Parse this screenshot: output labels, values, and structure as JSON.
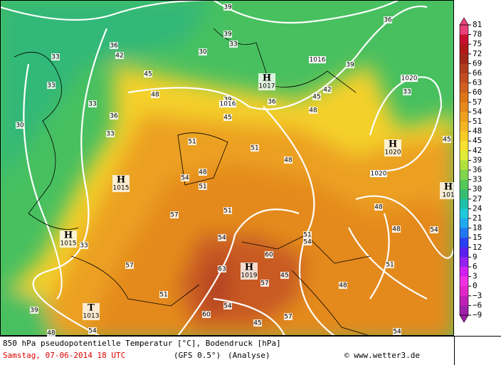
{
  "colorbar": {
    "ticks": [
      81,
      78,
      75,
      72,
      69,
      66,
      63,
      60,
      57,
      54,
      51,
      48,
      45,
      42,
      39,
      36,
      33,
      30,
      27,
      24,
      21,
      18,
      15,
      12,
      9,
      6,
      3,
      0,
      {
        "value": -3,
        "label": "−3"
      },
      {
        "value": -6,
        "label": "−6"
      },
      {
        "value": -9,
        "label": "−9"
      }
    ],
    "colors": [
      "#e8407a",
      "#c8102e",
      "#b01818",
      "#a02818",
      "#b03c20",
      "#c04e20",
      "#d06020",
      "#dc7418",
      "#e68a1c",
      "#eea020",
      "#f4b624",
      "#f8ca28",
      "#f8e030",
      "#e0ec38",
      "#b0e040",
      "#80d450",
      "#56c858",
      "#36be70",
      "#20c0a8",
      "#20c8d8",
      "#20a8f0",
      "#2078f0",
      "#2a40f0",
      "#5a20f0",
      "#9420f0",
      "#d020f0",
      "#f030e0",
      "#e028c8",
      "#c020b8",
      "#a020a8"
    ]
  },
  "contour_labels": [
    "39",
    "36",
    "39",
    "33",
    "30",
    "33",
    "36",
    "45",
    "42",
    "48",
    "33",
    "33",
    "36",
    "30",
    "33",
    "39",
    "45",
    "36",
    "48",
    "51",
    "48",
    "51",
    "54",
    "48",
    "51",
    "57",
    "51",
    "54",
    "51",
    "54",
    "57",
    "60",
    "57",
    "45",
    "51",
    "54",
    "60",
    "57",
    "45",
    "54",
    "48",
    "39",
    "33",
    "42",
    "45",
    "39",
    "33",
    "45",
    "48",
    "54",
    "51",
    "48",
    "54",
    "48",
    "63"
  ],
  "isobar_labels": [
    "1016",
    "1016",
    "1020",
    "1020"
  ],
  "pressure_centers": [
    {
      "symbol": "H",
      "value": "1017"
    },
    {
      "symbol": "H",
      "value": "1015"
    },
    {
      "symbol": "H",
      "value": "1015"
    },
    {
      "symbol": "H",
      "value": "1019"
    },
    {
      "symbol": "H",
      "value": "1020"
    },
    {
      "symbol": "T",
      "value": "1013"
    },
    {
      "symbol": "H",
      "value": "101"
    }
  ],
  "footer": {
    "title": "850 hPa pseudopotentielle Temperatur [°C], Bodendruck [hPa]",
    "date": "Samstag, 07-06-2014  18 UTC",
    "model": "(GFS 0.5°)",
    "run": "(Analyse)",
    "copyright": "© www.wetter3.de"
  }
}
